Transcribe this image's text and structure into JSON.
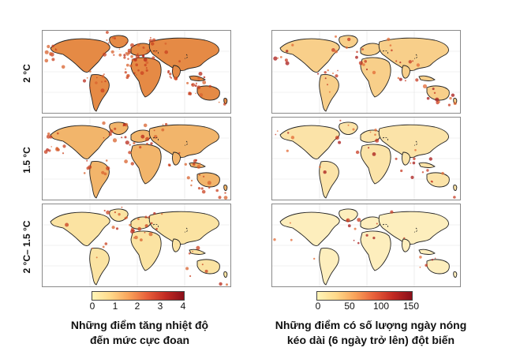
{
  "rows": [
    {
      "label": "2 °C"
    },
    {
      "label": "1.5 °C"
    },
    {
      "label": "2 °C– 1.5 °C"
    }
  ],
  "left_colorbar": {
    "ticks": [
      "0",
      "1",
      "2",
      "3",
      "4"
    ],
    "colors": [
      "#fff5b8",
      "#ffd98a",
      "#f9a35a",
      "#e8603a",
      "#c22a22",
      "#8a0f1a"
    ]
  },
  "right_colorbar": {
    "ticks": [
      "0",
      "50",
      "100",
      "150"
    ],
    "colors": [
      "#fff5b8",
      "#ffd98a",
      "#f9a35a",
      "#e8603a",
      "#c22a22",
      "#8a0f1a"
    ]
  },
  "captions": {
    "left_line1": "Những điểm tăng nhiệt độ",
    "left_line2": "đến mức cực đoan",
    "right_line1": "Những điểm có số lượng ngày nóng",
    "right_line2": "kéo dài (6 ngày trở lên) đột biến"
  },
  "map_shading": {
    "left": {
      "ocean": "#ffffff",
      "land": [
        "#e58a45",
        "#f2b56b",
        "#fbe3a2"
      ]
    },
    "right": {
      "ocean": "#ffffff",
      "land": [
        "#f8cf8a",
        "#fbe3a8",
        "#fdeebd"
      ]
    }
  }
}
